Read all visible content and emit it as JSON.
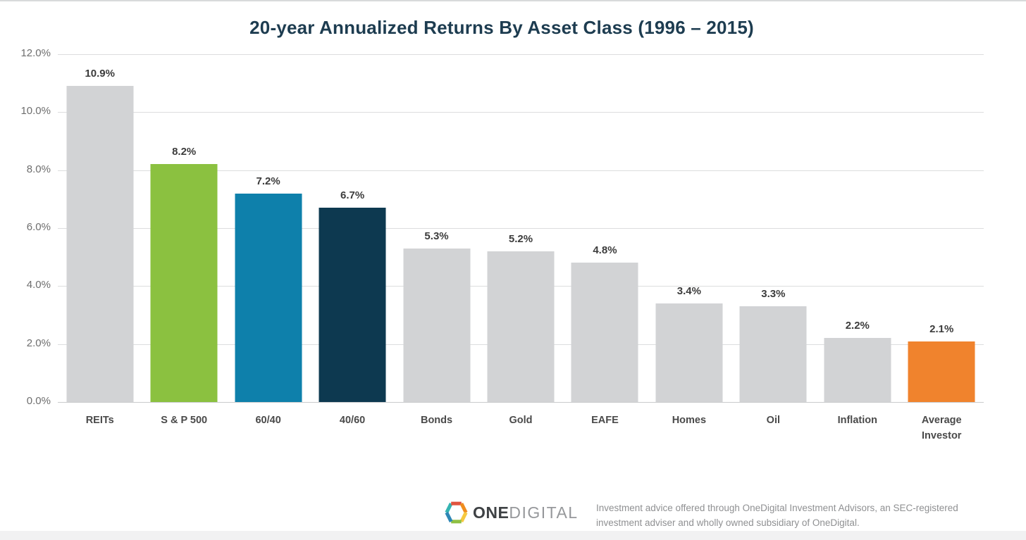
{
  "chart_data": {
    "type": "bar",
    "title": "20-year Annualized Returns By Asset Class (1996 – 2015)",
    "categories": [
      "REITs",
      "S & P 500",
      "60/40",
      "40/60",
      "Bonds",
      "Gold",
      "EAFE",
      "Homes",
      "Oil",
      "Inflation",
      "Average Investor"
    ],
    "values": [
      10.9,
      8.2,
      7.2,
      6.7,
      5.3,
      5.2,
      4.8,
      3.4,
      3.3,
      2.2,
      2.1
    ],
    "value_labels": [
      "10.9%",
      "8.2%",
      "7.2%",
      "6.7%",
      "5.3%",
      "5.2%",
      "4.8%",
      "3.4%",
      "3.3%",
      "2.2%",
      "2.1%"
    ],
    "bar_colors": [
      "#d2d3d5",
      "#8bc140",
      "#0e80ab",
      "#0d3950",
      "#d2d3d5",
      "#d2d3d5",
      "#d2d3d5",
      "#d2d3d5",
      "#d2d3d5",
      "#d2d3d5",
      "#f0832d"
    ],
    "xlabel": "",
    "ylabel": "",
    "ylim": [
      0,
      12
    ],
    "yticks": [
      "12.0%",
      "10.0%",
      "8.0%",
      "6.0%",
      "4.0%",
      "2.0%",
      "0.0%"
    ],
    "grid": true,
    "legend": false
  },
  "footer": {
    "logo_one": "ONE",
    "logo_digital": "DIGITAL",
    "logo_icon": "onedigital-hexagon-icon",
    "disclaimer": "Investment advice offered through OneDigital Investment Advisors, an SEC-registered investment adviser and wholly owned subsidiary of OneDigital."
  },
  "colors": {
    "title_text": "#1d3c50",
    "gridline": "#dcddde",
    "axis_tick_text": "#6e6e6e",
    "category_text": "#4a4a4a",
    "value_label_text": "#3c3c3c",
    "disclaimer_text": "#8f9092"
  }
}
